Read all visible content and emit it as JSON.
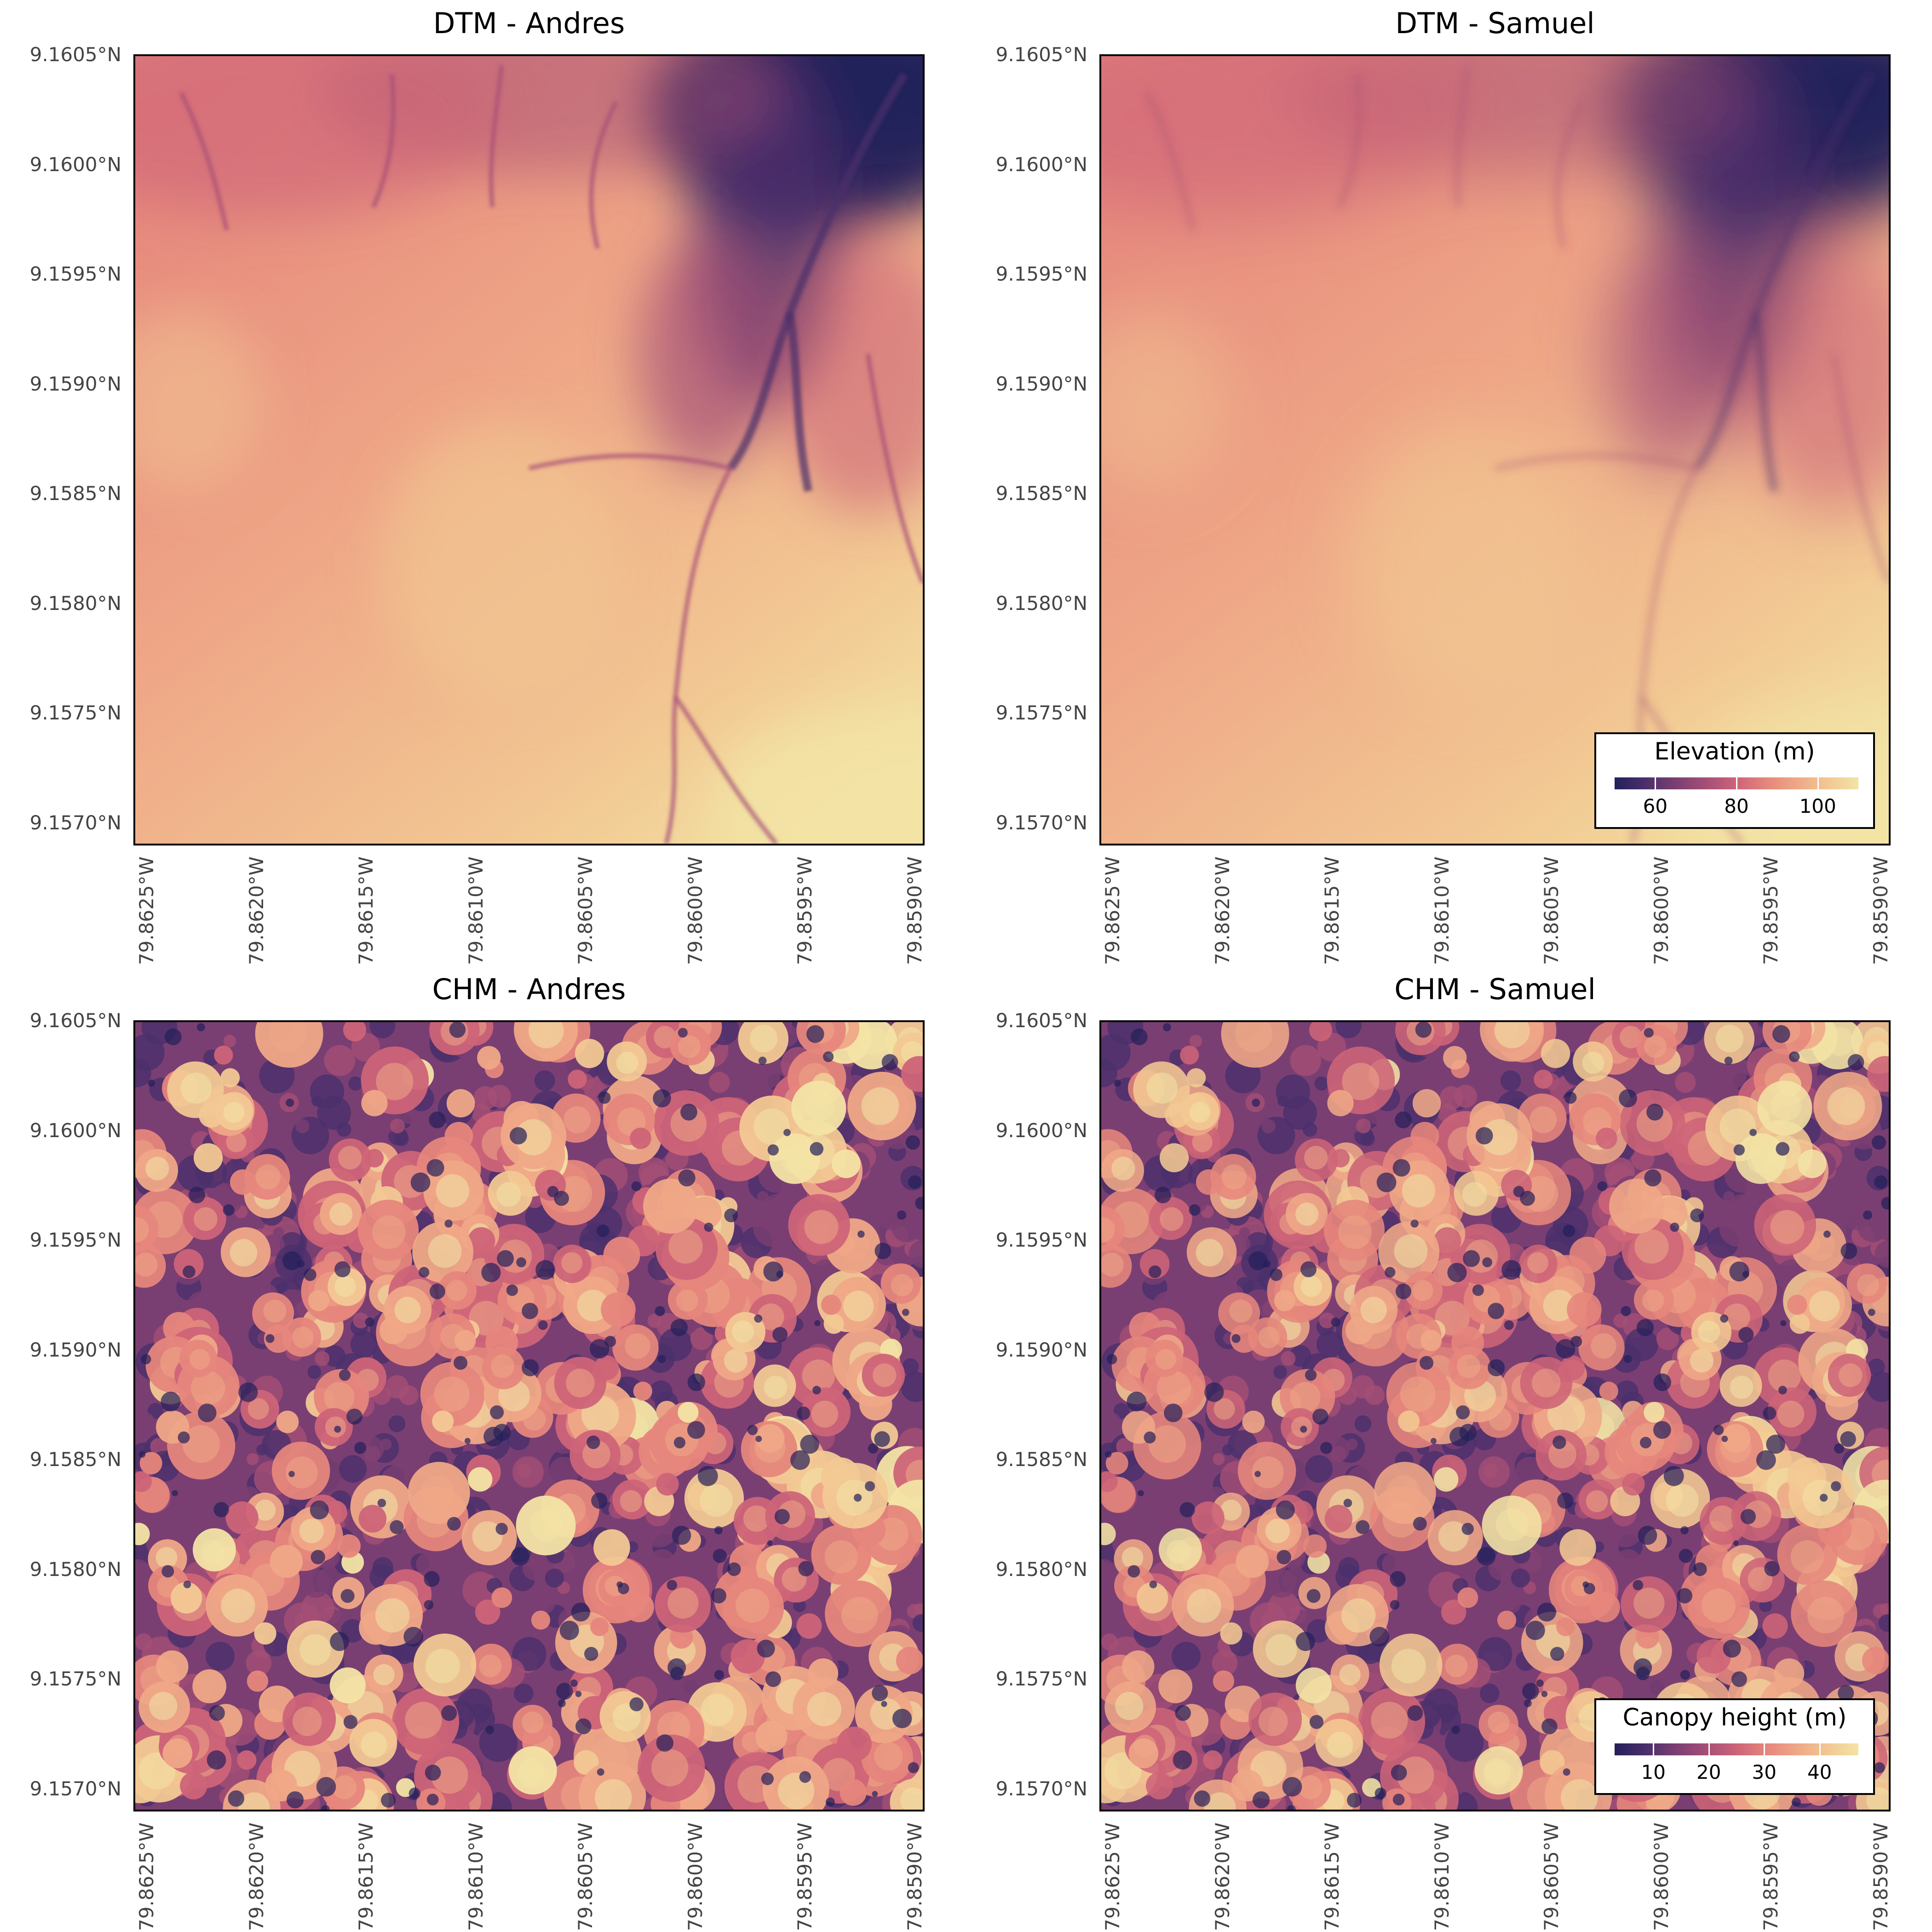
{
  "panels": [
    {
      "title": "DTM - Andres",
      "kind": "dtm",
      "variant": "a"
    },
    {
      "title": "DTM - Samuel",
      "kind": "dtm",
      "variant": "b"
    },
    {
      "title": "CHM - Andres",
      "kind": "chm",
      "variant": "a"
    },
    {
      "title": "CHM - Samuel",
      "kind": "chm",
      "variant": "b"
    }
  ],
  "axes": {
    "y_ticks": [
      "9.1605°N",
      "9.1600°N",
      "9.1595°N",
      "9.1590°N",
      "9.1585°N",
      "9.1580°N",
      "9.1575°N",
      "9.1570°N"
    ],
    "x_ticks": [
      "79.8625°W",
      "79.8620°W",
      "79.8615°W",
      "79.8610°W",
      "79.8605°W",
      "79.8600°W",
      "79.8595°W",
      "79.8590°W"
    ]
  },
  "legends": {
    "elevation": {
      "title": "Elevation (m)",
      "ticks": [
        "60",
        "80",
        "100"
      ],
      "range": [
        50,
        110
      ]
    },
    "canopy": {
      "title": "Canopy height (m)",
      "ticks": [
        "10",
        "20",
        "30",
        "40"
      ],
      "range": [
        3,
        47
      ]
    }
  },
  "colormap": [
    "#24205a",
    "#4a2f6b",
    "#7a3f72",
    "#a54f76",
    "#cd6478",
    "#e6867c",
    "#efa887",
    "#f2c893",
    "#f3e4a5"
  ]
}
